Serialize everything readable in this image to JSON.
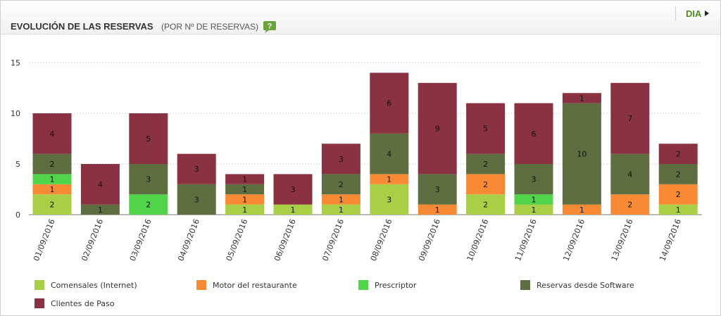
{
  "header": {
    "title": "EVOLUCIÓN DE LAS RESERVAS",
    "subtitle": "(POR Nº DE RESERVAS)",
    "help_glyph": "?",
    "help_icon": "help-speech-icon",
    "period_label": "DIA",
    "period_icon": "play-triangle-icon"
  },
  "chart_data": {
    "type": "bar",
    "stacked": true,
    "categories": [
      "01/09/2016",
      "02/09/2016",
      "03/09/2016",
      "04/09/2016",
      "05/09/2016",
      "06/09/2016",
      "07/09/2016",
      "08/09/2016",
      "09/09/2016",
      "10/09/2016",
      "11/09/2016",
      "12/09/2016",
      "13/09/2016",
      "14/09/2016"
    ],
    "series": [
      {
        "name": "Comensales (Internet)",
        "color": "#a9cf46",
        "values": [
          2,
          0,
          0,
          0,
          1,
          1,
          1,
          3,
          0,
          2,
          1,
          0,
          0,
          1
        ]
      },
      {
        "name": "Motor del restaurante",
        "color": "#f98a35",
        "values": [
          1,
          0,
          0,
          0,
          1,
          0,
          1,
          1,
          1,
          2,
          0,
          1,
          2,
          2
        ]
      },
      {
        "name": "Prescriptor",
        "color": "#4fd44a",
        "values": [
          1,
          0,
          2,
          0,
          0,
          0,
          0,
          0,
          0,
          0,
          1,
          0,
          0,
          0
        ]
      },
      {
        "name": "Reservas desde Software",
        "color": "#5e6e40",
        "values": [
          2,
          1,
          3,
          3,
          1,
          0,
          2,
          4,
          3,
          2,
          3,
          10,
          4,
          2
        ]
      },
      {
        "name": "Clientes de Paso",
        "color": "#8a3241",
        "values": [
          4,
          4,
          5,
          3,
          1,
          3,
          3,
          6,
          9,
          5,
          6,
          1,
          7,
          2
        ]
      }
    ],
    "yticks": [
      0,
      5,
      10,
      15
    ],
    "ylim": [
      0,
      15
    ],
    "grid": true,
    "legend_position": "bottom",
    "xlabel": "",
    "ylabel": ""
  }
}
